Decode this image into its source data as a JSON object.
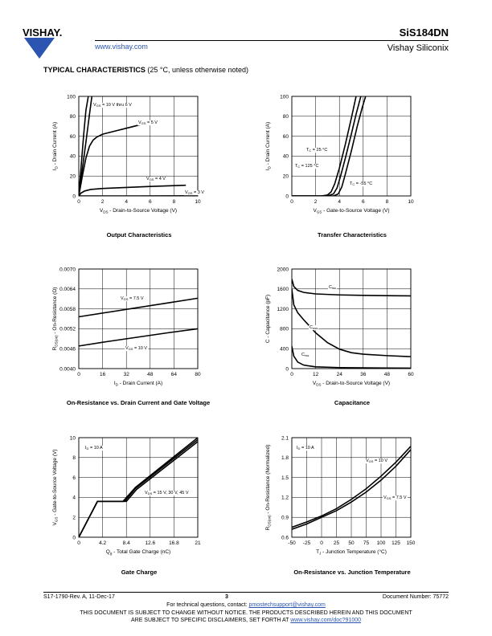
{
  "header": {
    "brand": "VISHAY.",
    "website": "www.vishay.com",
    "part_number": "SiS184DN",
    "company": "Vishay Siliconix"
  },
  "section": {
    "title_bold": "TYPICAL CHARACTERISTICS",
    "title_note": "(25 °C, unless otherwise noted)"
  },
  "charts": [
    {
      "caption": "Output Characteristics",
      "xlabel_main": "V",
      "xlabel_sub": "DS",
      "xlabel_rest": " - Drain-to-Source Voltage (V)",
      "ylabel_main": "I",
      "ylabel_sub": "D",
      "ylabel_rest": " - Drain Current (A)",
      "xticks": [
        "0",
        "2",
        "4",
        "6",
        "8",
        "10"
      ],
      "yticks": [
        "0",
        "20",
        "40",
        "60",
        "80",
        "100"
      ],
      "annotations": [
        "V   = 10 V thru 6 V",
        "V   = 5 V",
        "V   = 4 V",
        "V   = 3 V"
      ],
      "ann_subs": [
        "GS",
        "GS",
        "GS",
        "GS"
      ]
    },
    {
      "caption": "Transfer Characteristics",
      "xlabel_main": "V",
      "xlabel_sub": "GS",
      "xlabel_rest": " - Gate-to-Source Voltage (V)",
      "ylabel_main": "I",
      "ylabel_sub": "D",
      "ylabel_rest": " - Drain Current (A)",
      "xticks": [
        "0",
        "2",
        "4",
        "6",
        "8",
        "10"
      ],
      "yticks": [
        "0",
        "20",
        "40",
        "60",
        "80",
        "100"
      ],
      "annotations": [
        "T  = 25 °C",
        "T  = 125 °C",
        "T  = -55 °C"
      ],
      "ann_subs": [
        "C",
        "C",
        "C"
      ]
    },
    {
      "caption": "On-Resistance vs. Drain Current and Gate Voltage",
      "xlabel_main": "I",
      "xlabel_sub": "D",
      "xlabel_rest": " - Drain Current (A)",
      "ylabel_main": "R",
      "ylabel_sub": "DS(on)",
      "ylabel_rest": " - On-Resistance (Ω)",
      "xticks": [
        "0",
        "16",
        "32",
        "48",
        "64",
        "80"
      ],
      "yticks": [
        "0.0040",
        "0.0046",
        "0.0052",
        "0.0058",
        "0.0064",
        "0.0070"
      ],
      "annotations": [
        "V   = 7.5 V",
        "V   = 10 V"
      ],
      "ann_subs": [
        "GS",
        "GS"
      ]
    },
    {
      "caption": "Capacitance",
      "xlabel_main": "V",
      "xlabel_sub": "DS",
      "xlabel_rest": " - Drain-to-Source Voltage (V)",
      "ylabel_main": "C - Capacitance (pF)",
      "ylabel_sub": "",
      "ylabel_rest": "",
      "xticks": [
        "0",
        "12",
        "24",
        "36",
        "48",
        "60"
      ],
      "yticks": [
        "0",
        "400",
        "800",
        "1200",
        "1600",
        "2000"
      ],
      "annotations": [
        "C",
        "C",
        "C"
      ],
      "ann_subs": [
        "iss",
        "oss",
        "rss"
      ]
    },
    {
      "caption": "Gate Charge",
      "xlabel_main": "Q",
      "xlabel_sub": "g",
      "xlabel_rest": " - Total Gate Charge (nC)",
      "ylabel_main": "V",
      "ylabel_sub": "GS",
      "ylabel_rest": " - Gate-to-Source Voltage (V)",
      "xticks": [
        "0",
        "4.2",
        "8.4",
        "12.6",
        "16.8",
        "21"
      ],
      "yticks": [
        "0",
        "2",
        "4",
        "6",
        "8",
        "10"
      ],
      "annotations": [
        "I  = 10 A",
        "V   = 15 V, 30 V, 45 V"
      ],
      "ann_subs": [
        "D",
        "DS"
      ]
    },
    {
      "caption": "On-Resistance vs. Junction Temperature",
      "xlabel_main": "T",
      "xlabel_sub": "J",
      "xlabel_rest": " - Junction Temperature (°C)",
      "ylabel_main": "R",
      "ylabel_sub": "DS(on)",
      "ylabel_rest": " - On-Resistance (Normalized)",
      "xticks": [
        "-50",
        "-25",
        "0",
        "25",
        "50",
        "75",
        "100",
        "125",
        "150"
      ],
      "yticks": [
        "0.6",
        "0.9",
        "1.2",
        "1.5",
        "1.8",
        "2.1"
      ],
      "annotations": [
        "I  = 10 A",
        "V   = 10 V",
        "V   = 7.5 V"
      ],
      "ann_subs": [
        "D",
        "GS",
        "GS"
      ]
    }
  ],
  "chart_data": [
    {
      "type": "line",
      "title": "Output Characteristics",
      "xlabel": "VDS - Drain-to-Source Voltage (V)",
      "ylabel": "ID - Drain Current (A)",
      "xlim": [
        0,
        10
      ],
      "ylim": [
        0,
        100
      ],
      "grid": true,
      "series": [
        {
          "name": "VGS = 10 V thru 6 V (a)",
          "x": [
            0,
            0.2,
            0.4,
            0.6,
            0.8
          ],
          "y": [
            0,
            30,
            60,
            86,
            100
          ]
        },
        {
          "name": "VGS = 10 V thru 6 V (b)",
          "x": [
            0,
            0.3,
            0.6,
            0.9,
            1.1
          ],
          "y": [
            0,
            27,
            54,
            82,
            100
          ]
        },
        {
          "name": "VGS = 5 V",
          "x": [
            0,
            0.3,
            0.6,
            0.9,
            1.2,
            1.5,
            2,
            3,
            4,
            5,
            6,
            6.5
          ],
          "y": [
            0,
            20,
            38,
            50,
            56,
            59,
            62,
            65,
            68,
            71,
            74,
            75
          ]
        },
        {
          "name": "VGS = 4 V",
          "x": [
            0,
            0.2,
            0.5,
            1,
            2,
            4,
            6,
            8,
            9
          ],
          "y": [
            0,
            3,
            5,
            6.5,
            7.5,
            8.5,
            9.5,
            10.3,
            10.7
          ]
        },
        {
          "name": "VGS = 3 V",
          "x": [
            0,
            5,
            10
          ],
          "y": [
            0,
            0,
            0.2
          ]
        }
      ]
    },
    {
      "type": "line",
      "title": "Transfer Characteristics",
      "xlabel": "VGS - Gate-to-Source Voltage (V)",
      "ylabel": "ID - Drain Current (A)",
      "xlim": [
        0,
        10
      ],
      "ylim": [
        0,
        100
      ],
      "grid": true,
      "series": [
        {
          "name": "TC = 125 °C",
          "x": [
            0,
            2.5,
            3,
            3.3,
            3.6,
            4,
            4.5,
            5,
            5.4
          ],
          "y": [
            0,
            0,
            1,
            4,
            12,
            28,
            52,
            78,
            100
          ]
        },
        {
          "name": "TC = 25 °C",
          "x": [
            0,
            3,
            3.5,
            3.8,
            4.1,
            4.5,
            5,
            5.4,
            5.8
          ],
          "y": [
            0,
            0,
            2,
            8,
            20,
            38,
            62,
            82,
            100
          ]
        },
        {
          "name": "TC = -55 °C",
          "x": [
            0,
            3.5,
            3.9,
            4.2,
            4.5,
            5,
            5.5,
            5.9,
            6.2
          ],
          "y": [
            0,
            0,
            2,
            9,
            22,
            45,
            70,
            88,
            100
          ]
        }
      ]
    },
    {
      "type": "line",
      "title": "On-Resistance vs. Drain Current and Gate Voltage",
      "xlabel": "ID - Drain Current (A)",
      "ylabel": "RDS(on) - On-Resistance (Ω)",
      "xlim": [
        0,
        80
      ],
      "ylim": [
        0.004,
        0.007
      ],
      "grid": true,
      "series": [
        {
          "name": "VGS = 7.5 V",
          "x": [
            0,
            20,
            40,
            60,
            80
          ],
          "y": [
            0.00556,
            0.0057,
            0.00584,
            0.00598,
            0.00612
          ]
        },
        {
          "name": "VGS = 10 V",
          "x": [
            0,
            20,
            40,
            60,
            80
          ],
          "y": [
            0.00468,
            0.00482,
            0.00495,
            0.00508,
            0.0052
          ]
        }
      ]
    },
    {
      "type": "line",
      "title": "Capacitance",
      "xlabel": "VDS - Drain-to-Source Voltage (V)",
      "ylabel": "C - Capacitance (pF)",
      "xlim": [
        0,
        60
      ],
      "ylim": [
        0,
        2000
      ],
      "grid": true,
      "series": [
        {
          "name": "Ciss",
          "x": [
            0,
            1,
            3,
            6,
            12,
            24,
            36,
            48,
            60
          ],
          "y": [
            1800,
            1650,
            1570,
            1530,
            1500,
            1480,
            1470,
            1465,
            1460
          ]
        },
        {
          "name": "Coss",
          "x": [
            0,
            1,
            3,
            6,
            9,
            12,
            18,
            24,
            30,
            36,
            48,
            60
          ],
          "y": [
            1600,
            1280,
            1120,
            980,
            850,
            720,
            520,
            390,
            320,
            290,
            260,
            240
          ]
        },
        {
          "name": "Crss",
          "x": [
            0,
            1,
            3,
            6,
            12,
            24,
            36,
            48,
            60
          ],
          "y": [
            450,
            250,
            130,
            70,
            35,
            20,
            15,
            12,
            10
          ]
        }
      ]
    },
    {
      "type": "line",
      "title": "Gate Charge",
      "xlabel": "Qg - Total Gate Charge (nC)",
      "ylabel": "VGS - Gate-to-Source Voltage (V)",
      "xlim": [
        0,
        21
      ],
      "ylim": [
        0,
        10
      ],
      "grid": true,
      "series": [
        {
          "name": "VDS = 15 V",
          "x": [
            0,
            3.3,
            7.8,
            10,
            21
          ],
          "y": [
            0,
            3.6,
            3.6,
            5.0,
            10
          ]
        },
        {
          "name": "VDS = 30 V",
          "x": [
            0,
            3.3,
            8.1,
            10,
            21
          ],
          "y": [
            0,
            3.6,
            3.6,
            4.9,
            9.8
          ]
        },
        {
          "name": "VDS = 45 V",
          "x": [
            0,
            3.3,
            8.4,
            10.2,
            21
          ],
          "y": [
            0,
            3.6,
            3.6,
            4.8,
            9.6
          ]
        }
      ]
    },
    {
      "type": "line",
      "title": "On-Resistance vs. Junction Temperature",
      "xlabel": "TJ - Junction Temperature (°C)",
      "ylabel": "RDS(on) - On-Resistance (Normalized)",
      "xlim": [
        -50,
        150
      ],
      "ylim": [
        0.6,
        2.1
      ],
      "grid": true,
      "series": [
        {
          "name": "VGS = 10 V",
          "x": [
            -50,
            -25,
            0,
            25,
            50,
            75,
            100,
            125,
            150
          ],
          "y": [
            0.75,
            0.83,
            0.92,
            1.03,
            1.17,
            1.33,
            1.52,
            1.73,
            1.97
          ]
        },
        {
          "name": "VGS = 7.5 V",
          "x": [
            -50,
            -25,
            0,
            25,
            50,
            75,
            100,
            125,
            150
          ],
          "y": [
            0.72,
            0.8,
            0.9,
            1.0,
            1.13,
            1.28,
            1.46,
            1.67,
            1.92
          ]
        }
      ]
    }
  ],
  "footer": {
    "revision": "S17-1790-Rev. A, 11-Dec-17",
    "page": "3",
    "doc_number": "Document Number: 75772",
    "contact_prefix": "For technical questions, contact: ",
    "contact_email": "pmostechsupport@vishay.com",
    "disclaimer_line1": "THIS DOCUMENT IS SUBJECT TO CHANGE WITHOUT NOTICE. THE PRODUCTS DESCRIBED HEREIN AND THIS DOCUMENT",
    "disclaimer_line2_prefix": "ARE SUBJECT TO SPECIFIC DISCLAIMERS, SET FORTH AT ",
    "disclaimer_link": "www.vishay.com/doc?91000"
  }
}
